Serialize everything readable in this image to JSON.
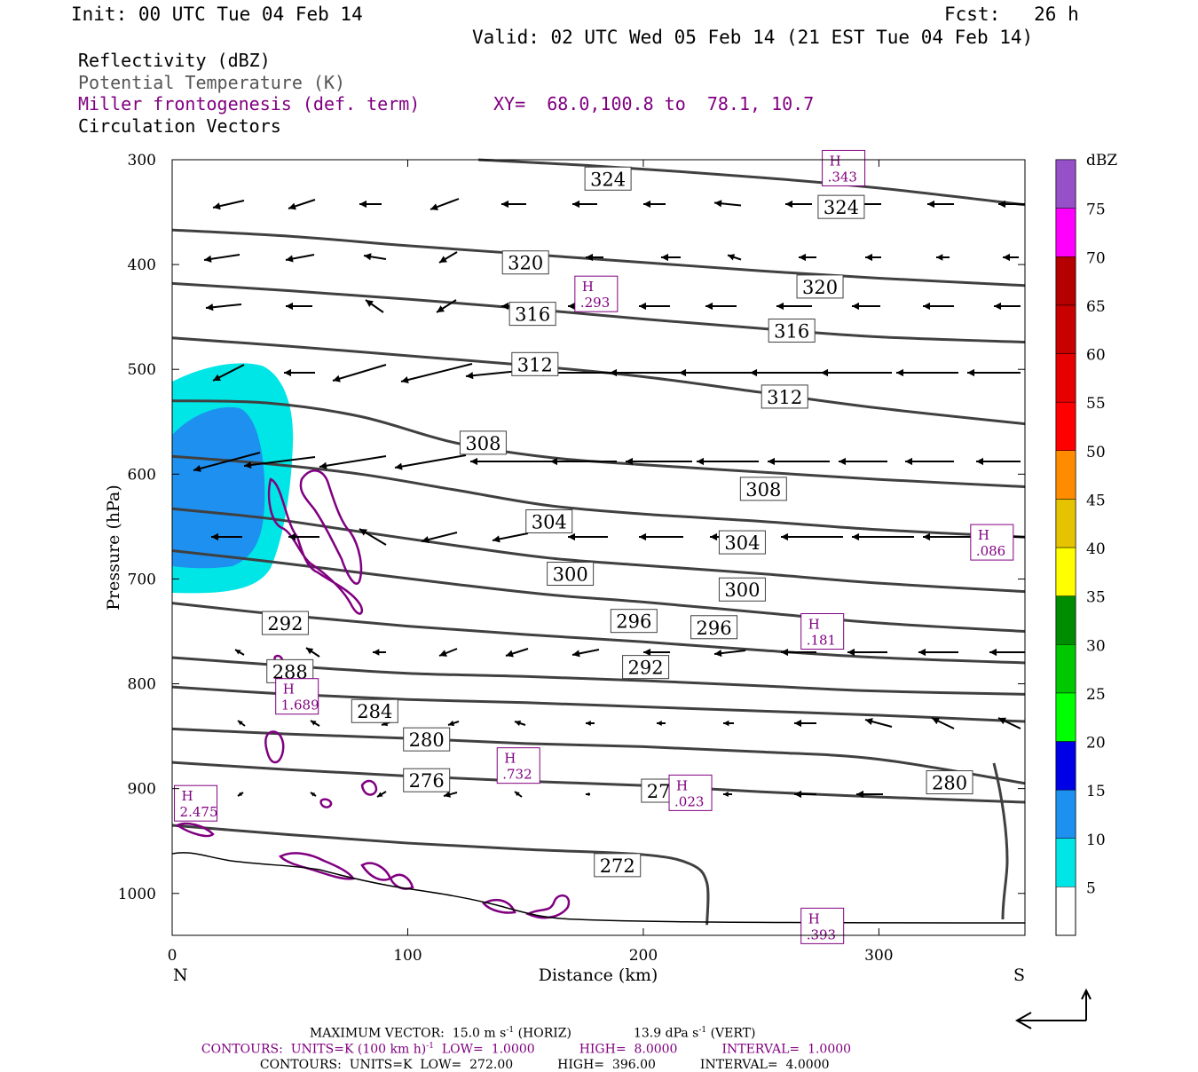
{
  "header": {
    "init": "Init: 00 UTC Tue 04 Feb 14",
    "fcst": "Fcst:   26 h",
    "valid": "Valid: 02 UTC Wed 05 Feb 14 (21 EST Tue 04 Feb 14)"
  },
  "legend": {
    "reflectivity": "Reflectivity (dBZ)",
    "theta": "Potential Temperature (K)",
    "frontogenesis": "Miller frontogenesis (def. term)",
    "xy": "XY=  68.0,100.8 to  78.1, 10.7",
    "vectors": "Circulation Vectors"
  },
  "colors": {
    "theta": "#404040",
    "fronto": "#800080",
    "refl_5": "#00e6e6",
    "refl_10": "#1e90f0"
  },
  "chart_data": {
    "type": "cross-section",
    "xlabel": "Distance (km)",
    "ylabel": "Pressure (hPa)",
    "xlim": [
      0,
      362
    ],
    "ylim": [
      1040,
      300
    ],
    "x_ticks": [
      0,
      100,
      200,
      300
    ],
    "x_tick_labels": [
      "0",
      "100",
      "200",
      "300"
    ],
    "y_ticks": [
      300,
      400,
      500,
      600,
      700,
      800,
      900,
      1000
    ],
    "y_tick_labels": [
      "300",
      "400",
      "500",
      "600",
      "700",
      "800",
      "900",
      "1000"
    ],
    "left_end": "N",
    "right_end": "S",
    "colorbar": {
      "title": "dBZ",
      "labels": [
        "5",
        "10",
        "15",
        "20",
        "25",
        "30",
        "35",
        "40",
        "45",
        "50",
        "55",
        "60",
        "65",
        "70",
        "75"
      ],
      "colors": [
        "#00e6e6",
        "#1e90f0",
        "#0000e6",
        "#00ff00",
        "#00c800",
        "#008c00",
        "#ffff00",
        "#e6c300",
        "#ff8c00",
        "#ff0000",
        "#e60000",
        "#c80000",
        "#b40000",
        "#ff00ff",
        "#9650c8"
      ]
    },
    "theta_contours": [
      {
        "value": 324,
        "points": [
          [
            130,
            300
          ],
          [
            180,
            306
          ],
          [
            250,
            317
          ],
          [
            300,
            327
          ],
          [
            362,
            343
          ]
        ]
      },
      {
        "value": 320,
        "points": [
          [
            0,
            367
          ],
          [
            50,
            373
          ],
          [
            100,
            382
          ],
          [
            150,
            390
          ],
          [
            200,
            398
          ],
          [
            250,
            406
          ],
          [
            300,
            413
          ],
          [
            362,
            420
          ]
        ]
      },
      {
        "value": 316,
        "points": [
          [
            0,
            418
          ],
          [
            50,
            425
          ],
          [
            100,
            433
          ],
          [
            150,
            442
          ],
          [
            200,
            452
          ],
          [
            250,
            461
          ],
          [
            300,
            469
          ],
          [
            362,
            474
          ]
        ]
      },
      {
        "value": 312,
        "points": [
          [
            0,
            470
          ],
          [
            50,
            478
          ],
          [
            100,
            487
          ],
          [
            150,
            496
          ],
          [
            200,
            507
          ],
          [
            250,
            522
          ],
          [
            300,
            537
          ],
          [
            362,
            552
          ]
        ]
      },
      {
        "value": 308,
        "points": [
          [
            0,
            530
          ],
          [
            40,
            532
          ],
          [
            80,
            545
          ],
          [
            120,
            570
          ],
          [
            160,
            584
          ],
          [
            200,
            591
          ],
          [
            250,
            598
          ],
          [
            300,
            605
          ],
          [
            362,
            612
          ]
        ]
      },
      {
        "value": 304,
        "points": [
          [
            0,
            583
          ],
          [
            40,
            590
          ],
          [
            80,
            600
          ],
          [
            120,
            615
          ],
          [
            160,
            630
          ],
          [
            200,
            638
          ],
          [
            250,
            645
          ],
          [
            300,
            653
          ],
          [
            362,
            660
          ]
        ]
      },
      {
        "value": 300,
        "points": [
          [
            0,
            633
          ],
          [
            40,
            642
          ],
          [
            80,
            655
          ],
          [
            120,
            668
          ],
          [
            160,
            680
          ],
          [
            200,
            687
          ],
          [
            250,
            695
          ],
          [
            300,
            704
          ],
          [
            362,
            712
          ]
        ]
      },
      {
        "value": 296,
        "points": [
          [
            0,
            673
          ],
          [
            40,
            683
          ],
          [
            80,
            694
          ],
          [
            120,
            705
          ],
          [
            160,
            715
          ],
          [
            200,
            722
          ],
          [
            250,
            732
          ],
          [
            300,
            742
          ],
          [
            362,
            750
          ]
        ]
      },
      {
        "value": 292,
        "points": [
          [
            0,
            723
          ],
          [
            50,
            735
          ],
          [
            100,
            745
          ],
          [
            150,
            753
          ],
          [
            200,
            760
          ],
          [
            250,
            768
          ],
          [
            300,
            775
          ],
          [
            362,
            780
          ]
        ]
      },
      {
        "value": 288,
        "points": [
          [
            0,
            775
          ],
          [
            50,
            783
          ],
          [
            100,
            790
          ],
          [
            150,
            793
          ],
          [
            200,
            797
          ],
          [
            250,
            802
          ],
          [
            300,
            807
          ],
          [
            362,
            810
          ]
        ]
      },
      {
        "value": 284,
        "points": [
          [
            0,
            803
          ],
          [
            50,
            810
          ],
          [
            100,
            815
          ],
          [
            150,
            818
          ],
          [
            200,
            822
          ],
          [
            250,
            826
          ],
          [
            300,
            830
          ],
          [
            362,
            836
          ]
        ]
      },
      {
        "value": 280,
        "points": [
          [
            0,
            843
          ],
          [
            50,
            848
          ],
          [
            100,
            852
          ],
          [
            150,
            857
          ],
          [
            200,
            860
          ],
          [
            250,
            865
          ],
          [
            300,
            872
          ],
          [
            362,
            895
          ]
        ]
      },
      {
        "value": 276,
        "points": [
          [
            0,
            875
          ],
          [
            50,
            882
          ],
          [
            100,
            888
          ],
          [
            150,
            893
          ],
          [
            200,
            897
          ],
          [
            250,
            903
          ],
          [
            300,
            908
          ],
          [
            362,
            913
          ]
        ]
      },
      {
        "value": 272,
        "points": [
          [
            0,
            935
          ],
          [
            50,
            944
          ],
          [
            100,
            952
          ],
          [
            150,
            958
          ],
          [
            200,
            963
          ],
          [
            220,
            972
          ],
          [
            227,
            990
          ],
          [
            227,
            1030
          ]
        ]
      }
    ],
    "theta_labels": [
      {
        "text": "324",
        "x": 185,
        "y": 318
      },
      {
        "text": "324",
        "x": 284,
        "y": 345
      },
      {
        "text": "320",
        "x": 150,
        "y": 398
      },
      {
        "text": "320",
        "x": 275,
        "y": 421
      },
      {
        "text": "316",
        "x": 153,
        "y": 447
      },
      {
        "text": "316",
        "x": 263,
        "y": 463
      },
      {
        "text": "312",
        "x": 154,
        "y": 495
      },
      {
        "text": "312",
        "x": 260,
        "y": 526
      },
      {
        "text": "308",
        "x": 132,
        "y": 570
      },
      {
        "text": "308",
        "x": 251,
        "y": 614
      },
      {
        "text": "304",
        "x": 160,
        "y": 645
      },
      {
        "text": "304",
        "x": 242,
        "y": 665
      },
      {
        "text": "300",
        "x": 169,
        "y": 695
      },
      {
        "text": "300",
        "x": 242,
        "y": 710
      },
      {
        "text": "296",
        "x": 196,
        "y": 740
      },
      {
        "text": "296",
        "x": 230,
        "y": 746
      },
      {
        "text": "292",
        "x": 48,
        "y": 742
      },
      {
        "text": "292",
        "x": 201,
        "y": 784
      },
      {
        "text": "288",
        "x": 50,
        "y": 788
      },
      {
        "text": "284",
        "x": 86,
        "y": 826
      },
      {
        "text": "280",
        "x": 108,
        "y": 853
      },
      {
        "text": "280",
        "x": 330,
        "y": 894
      },
      {
        "text": "276",
        "x": 108,
        "y": 892
      },
      {
        "text": "276",
        "x": 209,
        "y": 902
      },
      {
        "text": "272",
        "x": 189,
        "y": 973
      }
    ],
    "highs": [
      {
        "value": ".293",
        "x": 180,
        "y": 428
      },
      {
        "value": ".086",
        "x": 348,
        "y": 665
      },
      {
        "value": ".181",
        "x": 276,
        "y": 750
      },
      {
        "value": "1.689",
        "x": 53,
        "y": 812
      },
      {
        "value": ".732",
        "x": 147,
        "y": 878
      },
      {
        "value": ".023",
        "x": 220,
        "y": 904
      },
      {
        "value": "2.475",
        "x": 10,
        "y": 914
      },
      {
        "value": ".393",
        "x": 276,
        "y": 1031
      },
      {
        "value": ".343",
        "x": 285,
        "y": 308
      }
    ],
    "max_vector": {
      "horiz": "15.0",
      "vert": "13.9"
    },
    "fronto_contours": {
      "units": "K (100 km h)",
      "low": "1.0000",
      "high": "8.0000",
      "interval": "1.0000"
    },
    "theta_contour_info": {
      "units": "K",
      "low": "272.00",
      "high": "396.00",
      "interval": "4.0000"
    }
  },
  "footer": {
    "max_vector_prefix": "MAXIMUM VECTOR:  ",
    "max_vector_horiz_unit": " m s",
    "max_vector_horiz_suffix": " (HORIZ)",
    "max_vector_vert_unit": " dPa s",
    "max_vector_vert_suffix": " (VERT)",
    "exp": "-1",
    "c1_prefix": "CONTOURS:  UNITS=",
    "c1_low": "LOW=",
    "c1_high": "HIGH=",
    "c1_interval": "INTERVAL=",
    "c2_text_prefix": "CONTOURS:  UNITS="
  }
}
